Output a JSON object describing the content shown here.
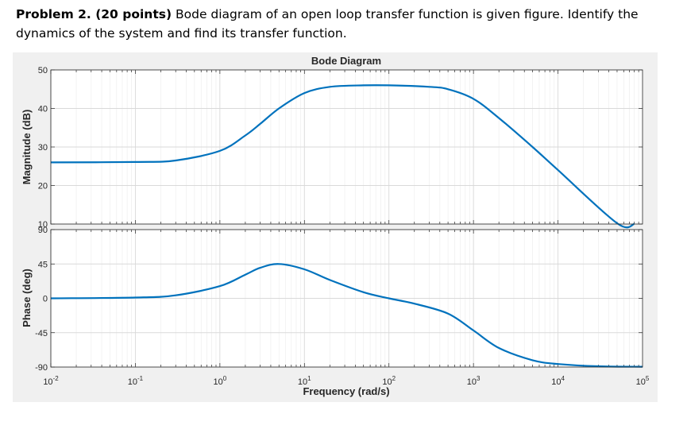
{
  "problem": {
    "label": "Problem 2. (20 points)",
    "text": " Bode diagram of an open loop transfer function is given figure. Identify the dynamics of the system and find its transfer function."
  },
  "chart_data": {
    "type": "line",
    "title": "Bode Diagram",
    "xlabel": "Frequency (rad/s)",
    "xscale": "log",
    "xlim": [
      0.01,
      100000
    ],
    "x_tick_labels": [
      {
        "base": "10",
        "exp": "-2"
      },
      {
        "base": "10",
        "exp": "-1"
      },
      {
        "base": "10",
        "exp": "0"
      },
      {
        "base": "10",
        "exp": "1"
      },
      {
        "base": "10",
        "exp": "2"
      },
      {
        "base": "10",
        "exp": "3"
      },
      {
        "base": "10",
        "exp": "4"
      },
      {
        "base": "10",
        "exp": "5"
      }
    ],
    "grid": true,
    "line_color": "#0072bd",
    "magnitude": {
      "ylabel": "Magnitude (dB)",
      "ylim": [
        10,
        50
      ],
      "yticks": [
        "10",
        "20",
        "30",
        "40",
        "50"
      ],
      "x": [
        0.01,
        0.1,
        0.3,
        1,
        2,
        3,
        5,
        10,
        20,
        50,
        100,
        300,
        500,
        1000,
        2000,
        5000,
        10000,
        50000,
        80000
      ],
      "y": [
        26,
        26.1,
        26.5,
        29,
        33,
        36,
        40,
        44,
        45.6,
        46,
        46,
        45.6,
        45,
        42.5,
        37.5,
        30,
        24,
        10.2,
        10
      ]
    },
    "phase": {
      "ylabel": "Phase (deg)",
      "ylim": [
        -90,
        90
      ],
      "yticks": [
        "-90",
        "-45",
        "0",
        "45",
        "90"
      ],
      "x": [
        0.01,
        0.1,
        0.3,
        1,
        2,
        3,
        5,
        10,
        20,
        50,
        100,
        200,
        500,
        1000,
        2000,
        5000,
        10000,
        30000,
        100000
      ],
      "y": [
        0,
        1,
        4,
        16,
        31,
        40,
        45,
        38,
        24,
        8,
        0,
        -7,
        -20,
        -42,
        -65,
        -81,
        -86,
        -89,
        -89.6
      ]
    }
  }
}
